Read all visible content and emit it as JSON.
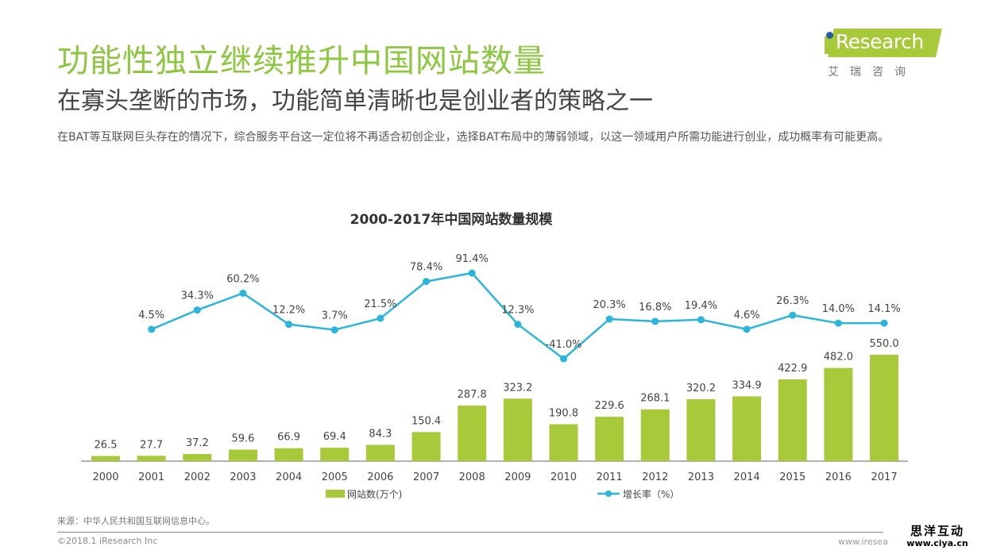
{
  "header": {
    "title": "功能性独立继续推升中国网站数量",
    "subtitle": "在寡头垄断的市场，功能简单清晰也是创业者的策略之一",
    "description": "在BAT等互联网巨头存在的情况下，综合服务平台这一定位将不再适合初创企业，选择BAT布局中的薄弱领域，以这一领域用户所需功能进行创业，成功概率有可能更高。"
  },
  "logo": {
    "brand": "Research",
    "brand_prefix": "i",
    "sub": "艾瑞咨询",
    "colors": {
      "band": "#a8c93a",
      "dot": "#2b5d9b"
    }
  },
  "chart_data": {
    "type": "bar+line",
    "title": "2000-2017年中国网站数量规模",
    "categories": [
      "2000",
      "2001",
      "2002",
      "2003",
      "2004",
      "2005",
      "2006",
      "2007",
      "2008",
      "2009",
      "2010",
      "2011",
      "2012",
      "2013",
      "2014",
      "2015",
      "2016",
      "2017"
    ],
    "series": [
      {
        "name": "网站数(万个)",
        "type": "bar",
        "color": "#a8c93a",
        "values": [
          26.5,
          27.7,
          37.2,
          59.6,
          66.9,
          69.4,
          84.3,
          150.4,
          287.8,
          323.2,
          190.8,
          229.6,
          268.1,
          320.2,
          334.9,
          422.9,
          482.0,
          550.0
        ],
        "labels": [
          "26.5",
          "27.7",
          "37.2",
          "59.6",
          "66.9",
          "69.4",
          "84.3",
          "150.4",
          "287.8",
          "323.2",
          "190.8",
          "229.6",
          "268.1",
          "320.2",
          "334.9",
          "422.9",
          "482.0",
          "550.0"
        ]
      },
      {
        "name": "增长率（%）",
        "type": "line",
        "color": "#2bb5dd",
        "values": [
          null,
          4.5,
          34.3,
          60.2,
          12.2,
          3.7,
          21.5,
          78.4,
          91.4,
          12.3,
          -41.0,
          20.3,
          16.8,
          19.4,
          4.6,
          26.3,
          14.0,
          14.1
        ],
        "labels": [
          null,
          "4.5%",
          "34.3%",
          "60.2%",
          "12.2%",
          "3.7%",
          "21.5%",
          "78.4%",
          "91.4%",
          "12.3%",
          "-41.0%",
          "20.3%",
          "16.8%",
          "19.4%",
          "4.6%",
          "26.3%",
          "14.0%",
          "14.1%"
        ]
      }
    ],
    "xlabel": "",
    "ylabel": "",
    "grid": false,
    "legend": "bottom"
  },
  "footer": {
    "source": "来源：中华人民共和国互联网信息中心。",
    "copyright": "©2018.1 iResearch Inc",
    "url": "www.iresea",
    "watermark_cn": "思洋互动",
    "watermark_url": "www.ciya.cn"
  }
}
